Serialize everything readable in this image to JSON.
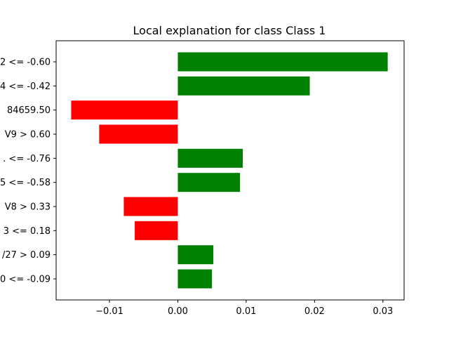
{
  "chart_data": {
    "type": "bar",
    "orientation": "horizontal",
    "title": "Local explanation for class Class 1",
    "xlabel": "",
    "ylabel": "",
    "xlim": [
      -0.0178,
      0.0331
    ],
    "grid": false,
    "categories": [
      "2 <= -0.60",
      "4 <= -0.42",
      "84659.50",
      "V9 > 0.60",
      ". <= -0.76",
      "5 <= -0.58",
      "V8 > 0.33",
      "3 <= 0.18",
      "/27 > 0.09",
      "0 <= -0.09"
    ],
    "values": [
      0.0307,
      0.0193,
      -0.0156,
      -0.0115,
      0.0095,
      0.0091,
      -0.0079,
      -0.0063,
      0.0052,
      0.005
    ],
    "x_ticks": [
      -0.01,
      0.0,
      0.01,
      0.02,
      0.03
    ],
    "x_tick_labels": [
      "−0.01",
      "0.00",
      "0.01",
      "0.02",
      "0.03"
    ],
    "colors": {
      "positive": "#008000",
      "negative": "#ff0000",
      "axis": "#000000",
      "background": "#ffffff"
    }
  }
}
